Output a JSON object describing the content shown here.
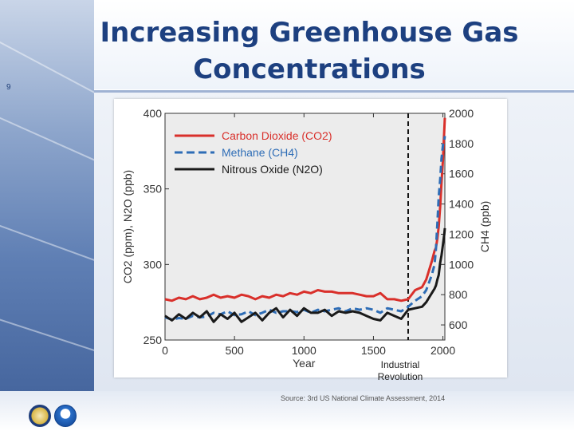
{
  "slide": {
    "number": "9",
    "title": "Increasing Greenhouse Gas Concentrations",
    "source": "Source: 3rd US National Climate Assessment, 2014",
    "annotation": "Industrial Revolution"
  },
  "logos": [
    "department-of-commerce-seal",
    "noaa-logo"
  ],
  "chart_data": {
    "type": "line",
    "title": "",
    "xlabel": "Year",
    "ylabel_left": "CO2 (ppm), N2O (ppb)",
    "ylabel_right": "CH4 (ppb)",
    "xlim": [
      0,
      2014
    ],
    "ylim_left": [
      250,
      400
    ],
    "ylim_right": [
      500,
      2000
    ],
    "x_ticks": [
      "0",
      "500",
      "1000",
      "1500",
      "2000"
    ],
    "left_ticks": [
      "250",
      "300",
      "350",
      "400"
    ],
    "right_ticks": [
      "600",
      "800",
      "1000",
      "1200",
      "1400",
      "1600",
      "1800",
      "2000"
    ],
    "legend_position": "top-left",
    "grid": false,
    "marker_line": {
      "x": 1750,
      "style": "dashed"
    },
    "series": [
      {
        "name": "Carbon Dioxide (CO2)",
        "axis": "left",
        "color": "#d9302b",
        "dash": "solid",
        "x": [
          0,
          50,
          100,
          150,
          200,
          250,
          300,
          350,
          400,
          450,
          500,
          550,
          600,
          650,
          700,
          750,
          800,
          850,
          900,
          950,
          1000,
          1050,
          1100,
          1150,
          1200,
          1250,
          1300,
          1350,
          1400,
          1450,
          1500,
          1550,
          1600,
          1650,
          1700,
          1750,
          1800,
          1850,
          1880,
          1900,
          1920,
          1940,
          1950,
          1960,
          1970,
          1980,
          1990,
          2000,
          2010,
          2014
        ],
        "values": [
          277,
          276,
          278,
          277,
          279,
          277,
          278,
          280,
          278,
          279,
          278,
          280,
          279,
          277,
          279,
          278,
          280,
          279,
          281,
          280,
          282,
          281,
          283,
          282,
          282,
          281,
          281,
          281,
          280,
          279,
          279,
          281,
          277,
          277,
          276,
          277,
          283,
          285,
          290,
          296,
          302,
          309,
          311,
          317,
          325,
          338,
          354,
          369,
          389,
          397
        ]
      },
      {
        "name": "Methane (CH4)",
        "axis": "right",
        "color": "#2e6db6",
        "dash": "dashed",
        "x": [
          0,
          50,
          100,
          150,
          200,
          250,
          300,
          350,
          400,
          450,
          500,
          550,
          600,
          650,
          700,
          750,
          800,
          850,
          900,
          950,
          1000,
          1050,
          1100,
          1150,
          1200,
          1250,
          1300,
          1350,
          1400,
          1450,
          1500,
          1550,
          1600,
          1650,
          1700,
          1750,
          1800,
          1850,
          1880,
          1900,
          1920,
          1940,
          1950,
          1960,
          1970,
          1980,
          1990,
          2000,
          2010,
          2014
        ],
        "values": [
          650,
          635,
          645,
          640,
          660,
          650,
          655,
          680,
          670,
          690,
          665,
          670,
          690,
          665,
          680,
          700,
          680,
          690,
          690,
          685,
          700,
          680,
          700,
          690,
          700,
          710,
          690,
          710,
          700,
          710,
          700,
          680,
          710,
          700,
          690,
          720,
          760,
          790,
          830,
          880,
          930,
          1000,
          1100,
          1270,
          1450,
          1560,
          1700,
          1790,
          1820,
          1850
        ]
      },
      {
        "name": "Nitrous Oxide (N2O)",
        "axis": "left",
        "color": "#1a1a1a",
        "dash": "solid",
        "x": [
          0,
          50,
          100,
          150,
          200,
          250,
          300,
          350,
          400,
          450,
          500,
          550,
          600,
          650,
          700,
          750,
          800,
          850,
          900,
          950,
          1000,
          1050,
          1100,
          1150,
          1200,
          1250,
          1300,
          1350,
          1400,
          1450,
          1500,
          1550,
          1600,
          1650,
          1700,
          1750,
          1800,
          1850,
          1880,
          1900,
          1920,
          1940,
          1950,
          1960,
          1970,
          1980,
          1990,
          2000,
          2010,
          2014
        ],
        "values": [
          266,
          263,
          267,
          264,
          268,
          265,
          269,
          262,
          267,
          264,
          268,
          262,
          265,
          268,
          263,
          268,
          271,
          265,
          270,
          266,
          271,
          268,
          268,
          270,
          266,
          269,
          268,
          269,
          268,
          266,
          264,
          263,
          268,
          266,
          264,
          270,
          271,
          272,
          275,
          278,
          281,
          284,
          286,
          290,
          293,
          301,
          306,
          313,
          320,
          324
        ]
      }
    ]
  }
}
